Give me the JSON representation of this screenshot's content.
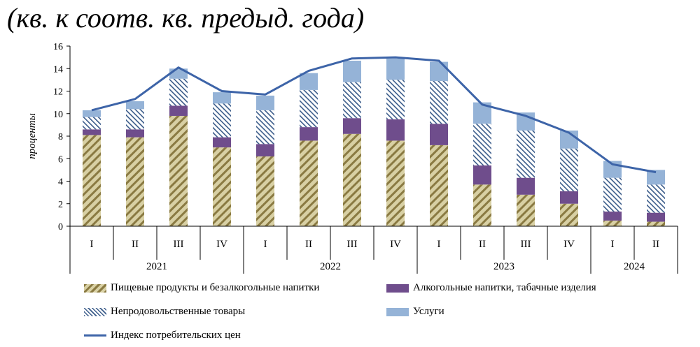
{
  "page": {
    "title": "(кв. к соотв. кв. предыд. года)"
  },
  "chart_data": {
    "type": "bar",
    "stacked": true,
    "ylabel": "проценты",
    "ylim": [
      0,
      16
    ],
    "yticks": [
      "0",
      "2",
      "4",
      "6",
      "8",
      "10",
      "12",
      "14",
      "16"
    ],
    "quarters": [
      "I",
      "II",
      "III",
      "IV",
      "I",
      "II",
      "III",
      "IV",
      "I",
      "II",
      "III",
      "IV",
      "I",
      "II"
    ],
    "years": [
      "2021",
      "2022",
      "2023",
      "2024"
    ],
    "series": [
      {
        "name": "Пищевые продукты и безалкогольные напитки",
        "color": "#d8d0a4",
        "pattern": "food",
        "values": [
          8.1,
          7.9,
          9.8,
          7.0,
          6.2,
          7.6,
          8.2,
          7.6,
          7.2,
          3.7,
          2.8,
          2.0,
          0.5,
          0.4
        ]
      },
      {
        "name": "Алкогольные напитки, табачные изделия",
        "color": "#6f4d8c",
        "pattern": "solid",
        "values": [
          0.5,
          0.7,
          0.9,
          0.9,
          1.1,
          1.2,
          1.4,
          1.9,
          1.9,
          1.7,
          1.5,
          1.1,
          0.8,
          0.8
        ]
      },
      {
        "name": "Непродовольственные  товары",
        "color": "#ffffff",
        "pattern": "nonfood",
        "values": [
          1.1,
          1.8,
          2.4,
          3.0,
          3.0,
          3.3,
          3.2,
          3.5,
          3.8,
          3.7,
          4.2,
          3.8,
          3.0,
          2.5
        ]
      },
      {
        "name": "Услуги",
        "color": "#95b3d7",
        "pattern": "solid",
        "values": [
          0.6,
          0.7,
          0.9,
          1.0,
          1.3,
          1.5,
          1.9,
          1.9,
          1.7,
          1.9,
          1.6,
          1.6,
          1.5,
          1.3
        ]
      }
    ],
    "line": {
      "name": "Индекс потребительских цен",
      "color": "#3d64a8",
      "values": [
        10.3,
        11.3,
        14.1,
        12.0,
        11.7,
        13.8,
        14.9,
        15.0,
        14.7,
        10.8,
        9.8,
        8.3,
        5.5,
        4.8
      ]
    },
    "legend_position": "bottom"
  }
}
